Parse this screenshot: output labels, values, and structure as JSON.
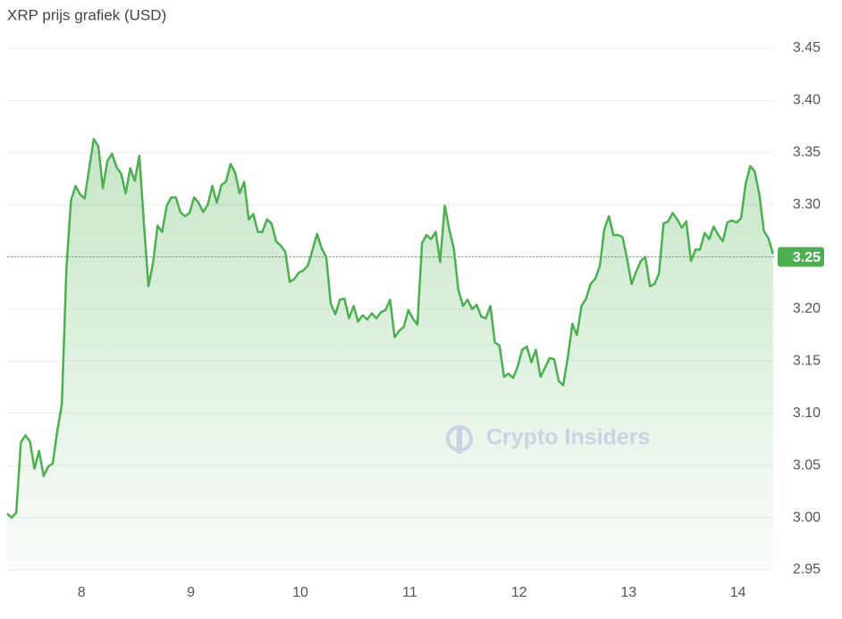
{
  "chart_data": {
    "type": "area",
    "title": "XRP prijs grafiek (USD)",
    "watermark": "Crypto Insiders",
    "x": [
      7.32,
      7.362,
      7.403,
      7.445,
      7.487,
      7.528,
      7.57,
      7.612,
      7.653,
      7.695,
      7.737,
      7.778,
      7.82,
      7.862,
      7.903,
      7.945,
      7.987,
      8.028,
      8.07,
      8.112,
      8.153,
      8.195,
      8.237,
      8.278,
      8.32,
      8.362,
      8.403,
      8.445,
      8.487,
      8.528,
      8.57,
      8.612,
      8.653,
      8.695,
      8.737,
      8.778,
      8.82,
      8.862,
      8.903,
      8.945,
      8.987,
      9.028,
      9.07,
      9.112,
      9.153,
      9.195,
      9.237,
      9.278,
      9.32,
      9.362,
      9.403,
      9.445,
      9.487,
      9.528,
      9.57,
      9.612,
      9.653,
      9.695,
      9.737,
      9.778,
      9.82,
      9.862,
      9.903,
      9.945,
      9.987,
      10.028,
      10.07,
      10.112,
      10.153,
      10.195,
      10.237,
      10.278,
      10.32,
      10.362,
      10.403,
      10.445,
      10.487,
      10.528,
      10.57,
      10.612,
      10.653,
      10.695,
      10.737,
      10.778,
      10.82,
      10.862,
      10.903,
      10.945,
      10.987,
      11.028,
      11.07,
      11.112,
      11.153,
      11.195,
      11.237,
      11.278,
      11.32,
      11.362,
      11.403,
      11.445,
      11.487,
      11.528,
      11.57,
      11.612,
      11.653,
      11.695,
      11.737,
      11.778,
      11.82,
      11.862,
      11.903,
      11.945,
      11.987,
      12.028,
      12.07,
      12.112,
      12.153,
      12.195,
      12.237,
      12.278,
      12.32,
      12.362,
      12.403,
      12.445,
      12.487,
      12.528,
      12.57,
      12.612,
      12.653,
      12.695,
      12.737,
      12.778,
      12.82,
      12.862,
      12.903,
      12.945,
      12.987,
      13.028,
      13.07,
      13.112,
      13.153,
      13.195,
      13.237,
      13.278,
      13.32,
      13.362,
      13.403,
      13.445,
      13.487,
      13.528,
      13.57,
      13.612,
      13.653,
      13.695,
      13.737,
      13.778,
      13.82,
      13.862,
      13.903,
      13.945,
      13.987,
      14.028,
      14.07,
      14.112,
      14.153,
      14.195,
      14.237,
      14.278,
      14.32
    ],
    "series": [
      {
        "name": "XRP",
        "color": "#4caf50",
        "values": [
          3.004,
          3.0,
          3.005,
          3.072,
          3.079,
          3.073,
          3.047,
          3.064,
          3.04,
          3.049,
          3.052,
          3.083,
          3.109,
          3.239,
          3.304,
          3.318,
          3.31,
          3.306,
          3.335,
          3.363,
          3.356,
          3.316,
          3.342,
          3.349,
          3.336,
          3.33,
          3.311,
          3.335,
          3.323,
          3.347,
          3.282,
          3.222,
          3.244,
          3.28,
          3.274,
          3.299,
          3.307,
          3.307,
          3.293,
          3.289,
          3.292,
          3.307,
          3.302,
          3.293,
          3.3,
          3.318,
          3.302,
          3.319,
          3.322,
          3.339,
          3.331,
          3.311,
          3.322,
          3.286,
          3.291,
          3.274,
          3.274,
          3.286,
          3.282,
          3.265,
          3.261,
          3.255,
          3.226,
          3.229,
          3.235,
          3.237,
          3.242,
          3.257,
          3.272,
          3.258,
          3.25,
          3.205,
          3.195,
          3.209,
          3.21,
          3.191,
          3.203,
          3.188,
          3.194,
          3.19,
          3.196,
          3.191,
          3.197,
          3.199,
          3.209,
          3.173,
          3.179,
          3.183,
          3.199,
          3.191,
          3.185,
          3.263,
          3.271,
          3.267,
          3.274,
          3.245,
          3.299,
          3.276,
          3.258,
          3.218,
          3.203,
          3.209,
          3.2,
          3.204,
          3.193,
          3.191,
          3.203,
          3.168,
          3.165,
          3.135,
          3.138,
          3.134,
          3.145,
          3.161,
          3.164,
          3.149,
          3.161,
          3.135,
          3.144,
          3.153,
          3.152,
          3.131,
          3.127,
          3.154,
          3.186,
          3.175,
          3.203,
          3.21,
          3.224,
          3.229,
          3.241,
          3.276,
          3.289,
          3.271,
          3.271,
          3.269,
          3.248,
          3.224,
          3.236,
          3.246,
          3.25,
          3.222,
          3.224,
          3.234,
          3.282,
          3.284,
          3.292,
          3.286,
          3.278,
          3.284,
          3.246,
          3.257,
          3.257,
          3.273,
          3.267,
          3.279,
          3.271,
          3.265,
          3.283,
          3.285,
          3.283,
          3.287,
          3.32,
          3.337,
          3.332,
          3.31,
          3.275,
          3.268,
          3.253
        ]
      }
    ],
    "current_price": 3.25,
    "xlim": [
      7.32,
      14.33
    ],
    "xticks": [
      8,
      9,
      10,
      11,
      12,
      13,
      14
    ],
    "ylim": [
      2.95,
      3.45
    ],
    "yticks": [
      2.95,
      {
        "value": 3,
        "label": "3.00"
      },
      3.05,
      {
        "value": 3.1,
        "label": "3.10"
      },
      3.15,
      {
        "value": 3.2,
        "label": "3.20"
      },
      3.25,
      {
        "value": 3.3,
        "label": "3.30"
      },
      3.35,
      {
        "value": 3.4,
        "label": "3.40"
      },
      3.45
    ],
    "grid": true
  }
}
